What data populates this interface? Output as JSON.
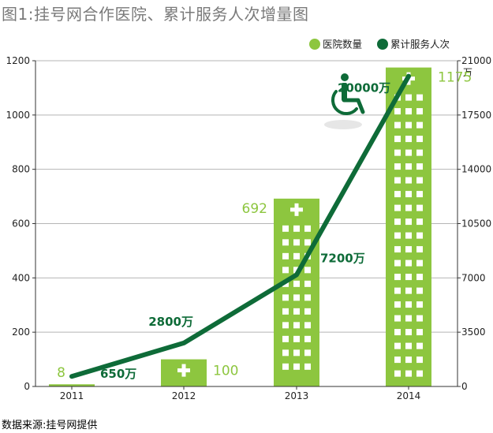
{
  "title": "图1:挂号网合作医院、累计服务人次增量图",
  "source": "数据来源:挂号网提供",
  "colors": {
    "bar": "#8dc63f",
    "line": "#0e6b38",
    "window": "#ffffff",
    "axis": "#333333"
  },
  "chart_data": {
    "type": "bar+line",
    "categories": [
      "2011",
      "2012",
      "2013",
      "2014"
    ],
    "series": [
      {
        "name": "医院数量",
        "type": "bar",
        "axis": "left",
        "values": [
          8,
          100,
          692,
          1175
        ],
        "labels": [
          "8",
          "100",
          "692",
          "1175"
        ]
      },
      {
        "name": "累计服务人次",
        "type": "line",
        "axis": "right",
        "values": [
          650,
          2800,
          7200,
          20000
        ],
        "labels": [
          "650万",
          "2800万",
          "7200万",
          "20000万"
        ]
      }
    ],
    "left_axis": {
      "min": 0,
      "max": 1200,
      "ticks": [
        "0",
        "200",
        "400",
        "600",
        "800",
        "1000",
        "1200"
      ]
    },
    "right_axis": {
      "min": 0,
      "max": 21000,
      "ticks": [
        "0",
        "3500",
        "7000",
        "10500",
        "14000",
        "17500",
        "21000"
      ],
      "unit": "万"
    },
    "grid": true,
    "legend_position": "top-right"
  },
  "icons": [
    "wheelchair-icon",
    "hospital-cross-icon"
  ]
}
